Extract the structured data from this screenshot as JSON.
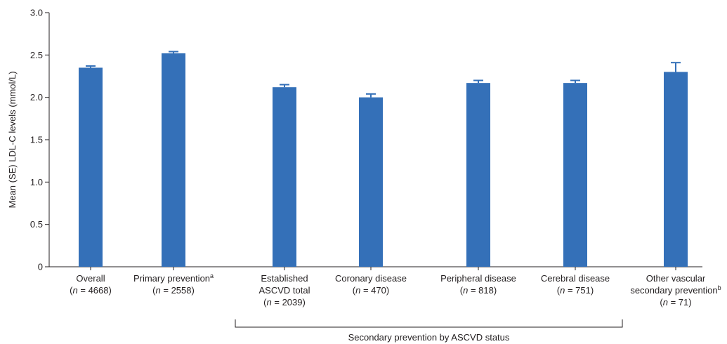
{
  "chart_data": {
    "type": "bar",
    "ylabel": "Mean (SE) LDL-C levels (mmol/L)",
    "xlabel": "",
    "ylim": [
      0,
      3.0
    ],
    "yticks": [
      "0",
      "0.5",
      "1.0",
      "1.5",
      "2.0",
      "2.5",
      "3.0"
    ],
    "ytick_values": [
      0,
      0.5,
      1.0,
      1.5,
      2.0,
      2.5,
      3.0
    ],
    "grid": false,
    "bar_color": "#3470b8",
    "categories": [
      {
        "lines": [
          [
            {
              "t": "Overall"
            }
          ],
          [
            {
              "t": "("
            },
            {
              "t": "n",
              "i": true
            },
            {
              "t": " = 4668)"
            }
          ]
        ],
        "value": 2.35,
        "se": 0.02
      },
      {
        "lines": [
          [
            {
              "t": "Primary prevention"
            },
            {
              "t": "a",
              "sup": true
            }
          ],
          [
            {
              "t": "("
            },
            {
              "t": "n",
              "i": true
            },
            {
              "t": " = 2558)"
            }
          ]
        ],
        "value": 2.52,
        "se": 0.02
      },
      {
        "lines": [
          [
            {
              "t": "Established"
            }
          ],
          [
            {
              "t": "ASCVD total"
            }
          ],
          [
            {
              "t": "("
            },
            {
              "t": "n",
              "i": true
            },
            {
              "t": " = 2039)"
            }
          ]
        ],
        "value": 2.12,
        "se": 0.03
      },
      {
        "lines": [
          [
            {
              "t": "Coronary disease"
            }
          ],
          [
            {
              "t": "("
            },
            {
              "t": "n",
              "i": true
            },
            {
              "t": " = 470)"
            }
          ]
        ],
        "value": 2.0,
        "se": 0.04
      },
      {
        "lines": [
          [
            {
              "t": "Peripheral disease"
            }
          ],
          [
            {
              "t": "("
            },
            {
              "t": "n",
              "i": true
            },
            {
              "t": " = 818)"
            }
          ]
        ],
        "value": 2.17,
        "se": 0.03
      },
      {
        "lines": [
          [
            {
              "t": "Cerebral disease"
            }
          ],
          [
            {
              "t": "("
            },
            {
              "t": "n",
              "i": true
            },
            {
              "t": " = 751)"
            }
          ]
        ],
        "value": 2.17,
        "se": 0.03
      },
      {
        "lines": [
          [
            {
              "t": "Other vascular"
            }
          ],
          [
            {
              "t": "secondary prevention"
            },
            {
              "t": "b",
              "sup": true
            }
          ],
          [
            {
              "t": "("
            },
            {
              "t": "n",
              "i": true
            },
            {
              "t": " = 71)"
            }
          ]
        ],
        "value": 2.3,
        "se": 0.11
      }
    ],
    "annotation": {
      "text": "Secondary prevention by ASCVD status",
      "span_categories": [
        2,
        5
      ]
    }
  }
}
